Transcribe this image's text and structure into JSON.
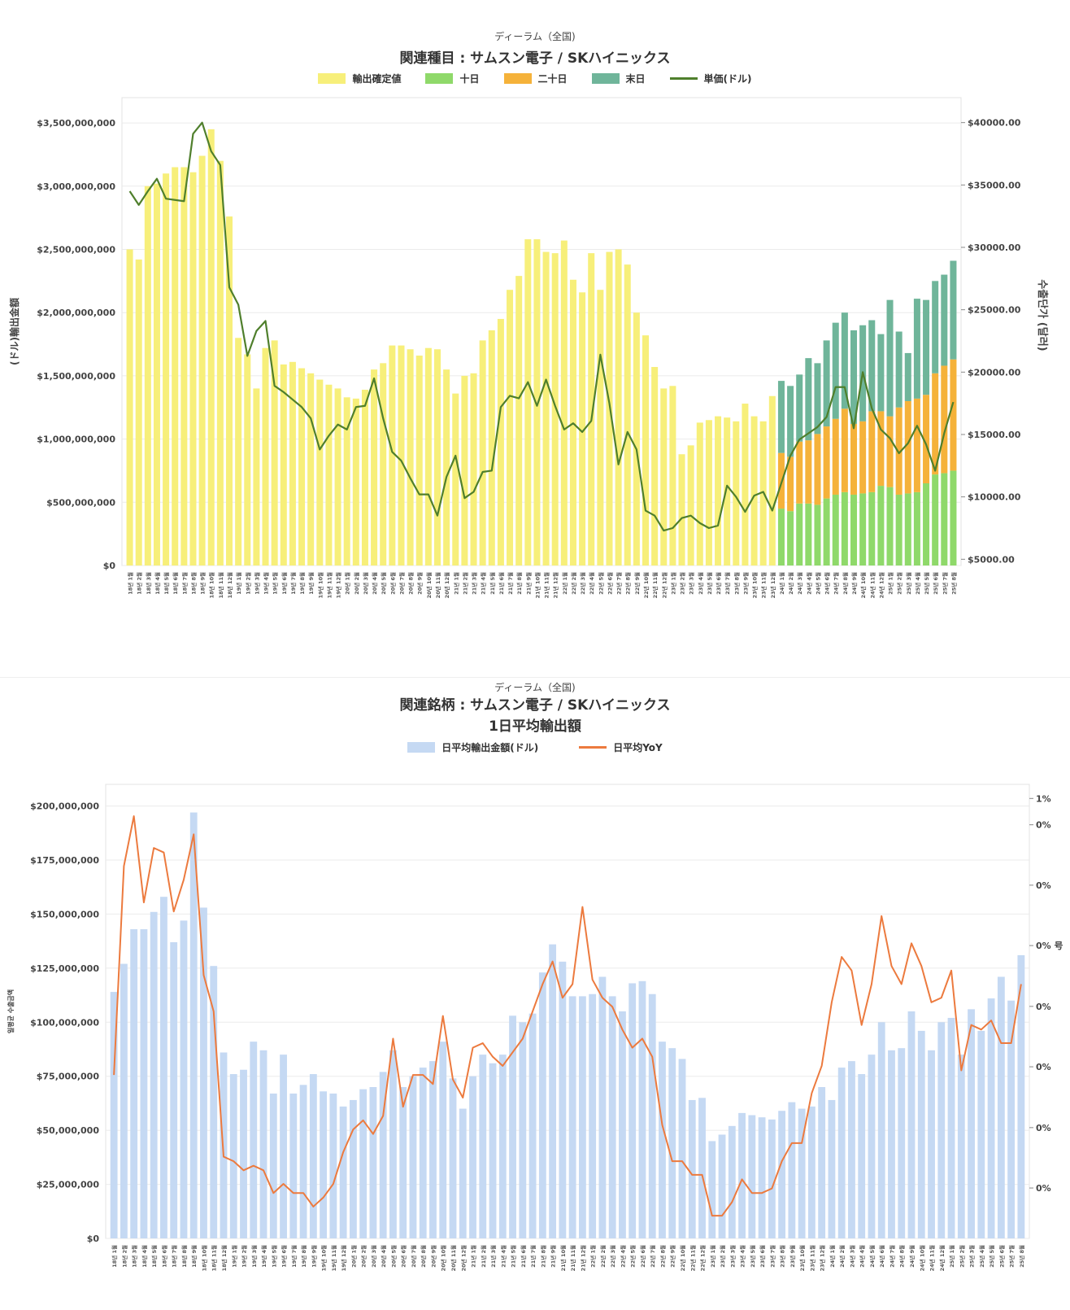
{
  "chart_data": [
    {
      "type": "bar",
      "stacked": true,
      "subtitle": "ディーラム（全国)",
      "title": "関連種目 : サムスン電子 / SKハイニックス",
      "ylabel": "(ドル)輸出金額",
      "y2label": "수출단가 (달러)",
      "ylim": [
        0,
        3700000000
      ],
      "y2lim": [
        4500,
        42000
      ],
      "yticks": [
        "$0",
        "$500,000,000",
        "$1,000,000,000",
        "$1,500,000,000",
        "$2,000,000,000",
        "$2,500,000,000",
        "$3,000,000,000",
        "$3,500,000,000"
      ],
      "ytick_values": [
        0,
        500000000,
        1000000000,
        1500000000,
        2000000000,
        2500000000,
        3000000000,
        3500000000
      ],
      "y2ticks": [
        "$5000.00",
        "$10000.00",
        "$15000.00",
        "$20000.00",
        "$25000.00",
        "$30000.00",
        "$35000.00",
        "$40000.00"
      ],
      "y2tick_values": [
        5000,
        10000,
        15000,
        20000,
        25000,
        30000,
        35000,
        40000
      ],
      "legend": [
        {
          "label": "輸出確定値",
          "color": "#f7ef7a",
          "kind": "bar"
        },
        {
          "label": "十日",
          "color": "#8fd96a",
          "kind": "bar"
        },
        {
          "label": "二十日",
          "color": "#f5b23a",
          "kind": "bar"
        },
        {
          "label": "末日",
          "color": "#6fb59a",
          "kind": "bar"
        },
        {
          "label": "単価(ドル)",
          "color": "#4f7f2c",
          "kind": "line"
        }
      ],
      "categories": [
        "18년 1월",
        "18년 2월",
        "18년 3월",
        "18년 4월",
        "18년 5월",
        "18년 6월",
        "18년 7월",
        "18년 8월",
        "18년 9월",
        "18년 10월",
        "18년 11월",
        "18년 12월",
        "19년 1월",
        "19년 2월",
        "19년 3월",
        "19년 4월",
        "19년 5월",
        "19년 6월",
        "19년 7월",
        "19년 8월",
        "19년 9월",
        "19년 10월",
        "19년 11월",
        "19년 12월",
        "20년 1월",
        "20년 2월",
        "20년 3월",
        "20년 4월",
        "20년 5월",
        "20년 6월",
        "20년 7월",
        "20년 8월",
        "20년 9월",
        "20년 10월",
        "20년 11월",
        "20년 12월",
        "21년 1월",
        "21년 2월",
        "21년 3월",
        "21년 4월",
        "21년 5월",
        "21년 6월",
        "21년 7월",
        "21년 8월",
        "21년 9월",
        "21년 10월",
        "21년 11월",
        "21년 12월",
        "22년 1월",
        "22년 2월",
        "22년 3월",
        "22년 4월",
        "22년 5월",
        "22년 6월",
        "22년 7월",
        "22년 8월",
        "22년 9월",
        "22년 10월",
        "22년 11월",
        "22년 12월",
        "23년 1월",
        "23년 2월",
        "23년 3월",
        "23년 4월",
        "23년 5월",
        "23년 6월",
        "23년 7월",
        "23년 8월",
        "23년 9월",
        "23년 10월",
        "23년 11월",
        "23년 12월",
        "24년 1월",
        "24년 2월",
        "24년 3월",
        "24년 4월",
        "24년 5월",
        "24년 6월",
        "24년 7월",
        "24년 8월",
        "24년 9월",
        "24년 10월",
        "24년 11월",
        "24년 12월",
        "25년 1월",
        "25년 2월",
        "25년 3월",
        "25년 4월",
        "25년 5월",
        "25년 6월",
        "25년 7월",
        "25년 8월"
      ],
      "series": [
        {
          "name": "輸出確定値",
          "values": [
            2500000000,
            2420000000,
            3000000000,
            3020000000,
            3100000000,
            3150000000,
            3150000000,
            3110000000,
            3240000000,
            3450000000,
            3200000000,
            2760000000,
            1800000000,
            1670000000,
            1400000000,
            1720000000,
            1780000000,
            1590000000,
            1610000000,
            1560000000,
            1520000000,
            1470000000,
            1430000000,
            1400000000,
            1330000000,
            1320000000,
            1390000000,
            1550000000,
            1600000000,
            1740000000,
            1740000000,
            1710000000,
            1660000000,
            1720000000,
            1710000000,
            1550000000,
            1360000000,
            1500000000,
            1520000000,
            1780000000,
            1860000000,
            1950000000,
            2180000000,
            2290000000,
            2580000000,
            2580000000,
            2480000000,
            2470000000,
            2570000000,
            2260000000,
            2160000000,
            2470000000,
            2180000000,
            2480000000,
            2500000000,
            2380000000,
            2000000000,
            1820000000,
            1570000000,
            1400000000,
            1420000000,
            880000000,
            950000000,
            1130000000,
            1150000000,
            1180000000,
            1170000000,
            1140000000,
            1280000000,
            1180000000,
            1140000000,
            1340000000,
            0,
            0,
            0,
            0,
            0,
            0,
            0,
            0,
            0,
            0,
            0,
            0,
            0,
            0,
            0,
            0,
            0,
            0,
            0,
            0
          ]
        },
        {
          "name": "十日",
          "values": [
            0,
            0,
            0,
            0,
            0,
            0,
            0,
            0,
            0,
            0,
            0,
            0,
            0,
            0,
            0,
            0,
            0,
            0,
            0,
            0,
            0,
            0,
            0,
            0,
            0,
            0,
            0,
            0,
            0,
            0,
            0,
            0,
            0,
            0,
            0,
            0,
            0,
            0,
            0,
            0,
            0,
            0,
            0,
            0,
            0,
            0,
            0,
            0,
            0,
            0,
            0,
            0,
            0,
            0,
            0,
            0,
            0,
            0,
            0,
            0,
            0,
            0,
            0,
            0,
            0,
            0,
            0,
            0,
            0,
            0,
            0,
            0,
            450000000,
            430000000,
            490000000,
            490000000,
            480000000,
            530000000,
            560000000,
            580000000,
            560000000,
            570000000,
            580000000,
            630000000,
            620000000,
            560000000,
            570000000,
            580000000,
            650000000,
            720000000,
            730000000,
            750000000
          ]
        },
        {
          "name": "二十日",
          "values": [
            0,
            0,
            0,
            0,
            0,
            0,
            0,
            0,
            0,
            0,
            0,
            0,
            0,
            0,
            0,
            0,
            0,
            0,
            0,
            0,
            0,
            0,
            0,
            0,
            0,
            0,
            0,
            0,
            0,
            0,
            0,
            0,
            0,
            0,
            0,
            0,
            0,
            0,
            0,
            0,
            0,
            0,
            0,
            0,
            0,
            0,
            0,
            0,
            0,
            0,
            0,
            0,
            0,
            0,
            0,
            0,
            0,
            0,
            0,
            0,
            0,
            0,
            0,
            0,
            0,
            0,
            0,
            0,
            0,
            0,
            0,
            0,
            440000000,
            430000000,
            490000000,
            500000000,
            560000000,
            570000000,
            600000000,
            660000000,
            560000000,
            570000000,
            640000000,
            590000000,
            560000000,
            690000000,
            730000000,
            740000000,
            700000000,
            800000000,
            850000000,
            880000000
          ]
        },
        {
          "name": "末日",
          "values": [
            0,
            0,
            0,
            0,
            0,
            0,
            0,
            0,
            0,
            0,
            0,
            0,
            0,
            0,
            0,
            0,
            0,
            0,
            0,
            0,
            0,
            0,
            0,
            0,
            0,
            0,
            0,
            0,
            0,
            0,
            0,
            0,
            0,
            0,
            0,
            0,
            0,
            0,
            0,
            0,
            0,
            0,
            0,
            0,
            0,
            0,
            0,
            0,
            0,
            0,
            0,
            0,
            0,
            0,
            0,
            0,
            0,
            0,
            0,
            0,
            0,
            0,
            0,
            0,
            0,
            0,
            0,
            0,
            0,
            0,
            0,
            0,
            570000000,
            560000000,
            530000000,
            650000000,
            560000000,
            680000000,
            760000000,
            760000000,
            740000000,
            760000000,
            720000000,
            610000000,
            920000000,
            600000000,
            380000000,
            790000000,
            750000000,
            730000000,
            720000000,
            780000000
          ]
        }
      ],
      "line": {
        "name": "単価(ドル)",
        "axis": "right",
        "values": [
          34500,
          33400,
          34500,
          35500,
          33900,
          33800,
          33700,
          39100,
          40000,
          37700,
          36600,
          26800,
          25400,
          21300,
          23300,
          24100,
          18900,
          18400,
          17800,
          17200,
          16300,
          13800,
          14900,
          15800,
          15400,
          17200,
          17300,
          19500,
          16300,
          13600,
          12900,
          11500,
          10200,
          10200,
          8500,
          11600,
          13300,
          9900,
          10400,
          12000,
          12100,
          17200,
          18100,
          17900,
          19200,
          17300,
          19400,
          17300,
          15400,
          15900,
          15200,
          16100,
          21400,
          17500,
          12600,
          15200,
          13800,
          8900,
          8500,
          7300,
          7500,
          8300,
          8500,
          7900,
          7500,
          7700,
          10900,
          10000,
          8800,
          10100,
          10400,
          8900,
          11100,
          13300,
          14600,
          15100,
          15600,
          16400,
          18800,
          18800,
          15500,
          20000,
          17100,
          15400,
          14700,
          13500,
          14300,
          15700,
          14200,
          12100,
          15100,
          17600
        ]
      }
    },
    {
      "type": "bar",
      "subtitle": "ディーラム（全国)",
      "title": "関連銘柄 : サムスン電子 / SKハイニックス",
      "title2": "1日平均輸出額",
      "ylabel": "일평균 수출금액",
      "ylim": [
        0,
        210000000
      ],
      "y2lim": [
        0,
        1
      ],
      "yticks": [
        "$0",
        "$25,000,000",
        "$50,000,000",
        "$75,000,000",
        "$100,000,000",
        "$125,000,000",
        "$150,000,000",
        "$175,000,000",
        "$200,000,000"
      ],
      "ytick_values": [
        0,
        25000000,
        50000000,
        75000000,
        100000000,
        125000000,
        150000000,
        175000000,
        200000000
      ],
      "y2ticks": [
        "0%",
        "0%",
        "0%",
        "0%",
        "0% 号",
        "0%",
        "0%",
        "1%"
      ],
      "y2tick_values": [
        0.111,
        0.244,
        0.378,
        0.511,
        0.645,
        0.778,
        0.911,
        0.969
      ],
      "legend": [
        {
          "label": "日平均輸出金額(ドル)",
          "color": "#c5d9f3",
          "kind": "bar"
        },
        {
          "label": "日平均YoY",
          "color": "#ec7a3e",
          "kind": "line"
        }
      ],
      "categories": [
        "18년 1월",
        "18년 2월",
        "18년 3월",
        "18년 4월",
        "18년 5월",
        "18년 6월",
        "18년 7월",
        "18년 8월",
        "18년 9월",
        "18년 10월",
        "18년 11월",
        "18년 12월",
        "19년 1월",
        "19년 2월",
        "19년 3월",
        "19년 4월",
        "19년 5월",
        "19년 6월",
        "19년 7월",
        "19년 8월",
        "19년 9월",
        "19년 10월",
        "19년 11월",
        "19년 12월",
        "20년 1월",
        "20년 2월",
        "20년 3월",
        "20년 4월",
        "20년 5월",
        "20년 6월",
        "20년 7월",
        "20년 8월",
        "20년 9월",
        "20년 10월",
        "20년 11월",
        "20년 12월",
        "21년 1월",
        "21년 2월",
        "21년 3월",
        "21년 4월",
        "21년 5월",
        "21년 6월",
        "21년 7월",
        "21년 8월",
        "21년 9월",
        "21년 10월",
        "21년 11월",
        "21년 12월",
        "22년 1월",
        "22년 2월",
        "22년 3월",
        "22년 4월",
        "22년 5월",
        "22년 6월",
        "22년 7월",
        "22년 8월",
        "22년 9월",
        "22년 10월",
        "22년 11월",
        "22년 12월",
        "23년 1월",
        "23년 2월",
        "23년 3월",
        "23년 4월",
        "23년 5월",
        "23년 6월",
        "23년 7월",
        "23년 8월",
        "23년 9월",
        "23년 10월",
        "23년 11월",
        "23년 12월",
        "24년 1월",
        "24년 2월",
        "24년 3월",
        "24년 4월",
        "24년 5월",
        "24년 6월",
        "24년 7월",
        "24년 8월",
        "24년 9월",
        "24년 10월",
        "24년 11월",
        "24년 12월",
        "25년 1월",
        "25년 2월",
        "25년 3월",
        "25년 4월",
        "25년 5월",
        "25년 6월",
        "25년 7월",
        "25년 8월"
      ],
      "values": [
        114000000,
        127000000,
        143000000,
        143000000,
        151000000,
        158000000,
        137000000,
        147000000,
        197000000,
        153000000,
        126000000,
        86000000,
        76000000,
        78000000,
        91000000,
        87000000,
        67000000,
        85000000,
        67000000,
        71000000,
        76000000,
        68000000,
        67000000,
        61000000,
        64000000,
        69000000,
        70000000,
        77000000,
        87000000,
        70000000,
        75000000,
        79000000,
        82000000,
        91000000,
        74000000,
        60000000,
        75000000,
        85000000,
        81000000,
        85000000,
        103000000,
        100000000,
        104000000,
        123000000,
        136000000,
        128000000,
        112000000,
        112000000,
        113000000,
        121000000,
        112000000,
        105000000,
        118000000,
        119000000,
        113000000,
        91000000,
        88000000,
        83000000,
        64000000,
        65000000,
        45000000,
        48000000,
        52000000,
        58000000,
        57000000,
        56000000,
        55000000,
        59000000,
        63000000,
        60000000,
        61000000,
        70000000,
        64000000,
        79000000,
        82000000,
        76000000,
        85000000,
        100000000,
        87000000,
        88000000,
        105000000,
        96000000,
        87000000,
        100000000,
        102000000,
        85000000,
        106000000,
        96000000,
        111000000,
        121000000,
        110000000,
        131000000
      ],
      "line": {
        "name": "日平均YoY",
        "axis": "right",
        "values": [
          0.36,
          0.82,
          0.93,
          0.74,
          0.86,
          0.85,
          0.72,
          0.79,
          0.89,
          0.58,
          0.5,
          0.18,
          0.17,
          0.15,
          0.16,
          0.15,
          0.1,
          0.12,
          0.1,
          0.1,
          0.07,
          0.09,
          0.12,
          0.19,
          0.24,
          0.26,
          0.23,
          0.27,
          0.44,
          0.29,
          0.36,
          0.36,
          0.34,
          0.49,
          0.35,
          0.31,
          0.42,
          0.43,
          0.4,
          0.38,
          0.41,
          0.44,
          0.5,
          0.56,
          0.61,
          0.53,
          0.56,
          0.73,
          0.57,
          0.53,
          0.51,
          0.46,
          0.42,
          0.44,
          0.4,
          0.25,
          0.17,
          0.17,
          0.14,
          0.14,
          0.05,
          0.05,
          0.08,
          0.13,
          0.1,
          0.1,
          0.11,
          0.17,
          0.21,
          0.21,
          0.32,
          0.38,
          0.52,
          0.62,
          0.59,
          0.47,
          0.56,
          0.71,
          0.6,
          0.56,
          0.65,
          0.6,
          0.52,
          0.53,
          0.59,
          0.37,
          0.47,
          0.46,
          0.48,
          0.43,
          0.43,
          0.56
        ]
      }
    }
  ]
}
